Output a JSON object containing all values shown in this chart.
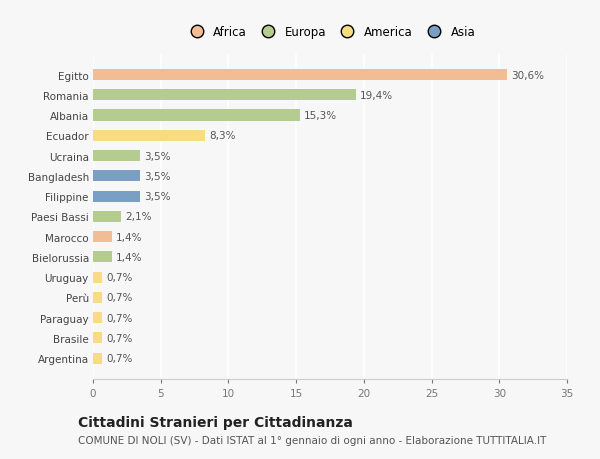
{
  "countries": [
    "Egitto",
    "Romania",
    "Albania",
    "Ecuador",
    "Ucraina",
    "Bangladesh",
    "Filippine",
    "Paesi Bassi",
    "Marocco",
    "Bielorussia",
    "Uruguay",
    "Perù",
    "Paraguay",
    "Brasile",
    "Argentina"
  ],
  "values": [
    30.6,
    19.4,
    15.3,
    8.3,
    3.5,
    3.5,
    3.5,
    2.1,
    1.4,
    1.4,
    0.7,
    0.7,
    0.7,
    0.7,
    0.7
  ],
  "labels": [
    "30,6%",
    "19,4%",
    "15,3%",
    "8,3%",
    "3,5%",
    "3,5%",
    "3,5%",
    "2,1%",
    "1,4%",
    "1,4%",
    "0,7%",
    "0,7%",
    "0,7%",
    "0,7%",
    "0,7%"
  ],
  "colors": [
    "#f2bc94",
    "#b5cc90",
    "#b5cc90",
    "#f7dc82",
    "#b5cc90",
    "#7a9fc4",
    "#7a9fc4",
    "#b5cc90",
    "#f2bc94",
    "#b5cc90",
    "#f7dc82",
    "#f7dc82",
    "#f7dc82",
    "#f7dc82",
    "#f7dc82"
  ],
  "legend_labels": [
    "Africa",
    "Europa",
    "America",
    "Asia"
  ],
  "legend_colors": [
    "#f2bc94",
    "#b5cc90",
    "#f7dc82",
    "#7a9fc4"
  ],
  "xlim": [
    0,
    35
  ],
  "xticks": [
    0,
    5,
    10,
    15,
    20,
    25,
    30,
    35
  ],
  "title": "Cittadini Stranieri per Cittadinanza",
  "subtitle": "COMUNE DI NOLI (SV) - Dati ISTAT al 1° gennaio di ogni anno - Elaborazione TUTTITALIA.IT",
  "background_color": "#f7f7f7",
  "grid_color": "#ffffff",
  "bar_height": 0.55,
  "label_fontsize": 7.5,
  "tick_fontsize": 7.5,
  "title_fontsize": 10,
  "subtitle_fontsize": 7.5
}
